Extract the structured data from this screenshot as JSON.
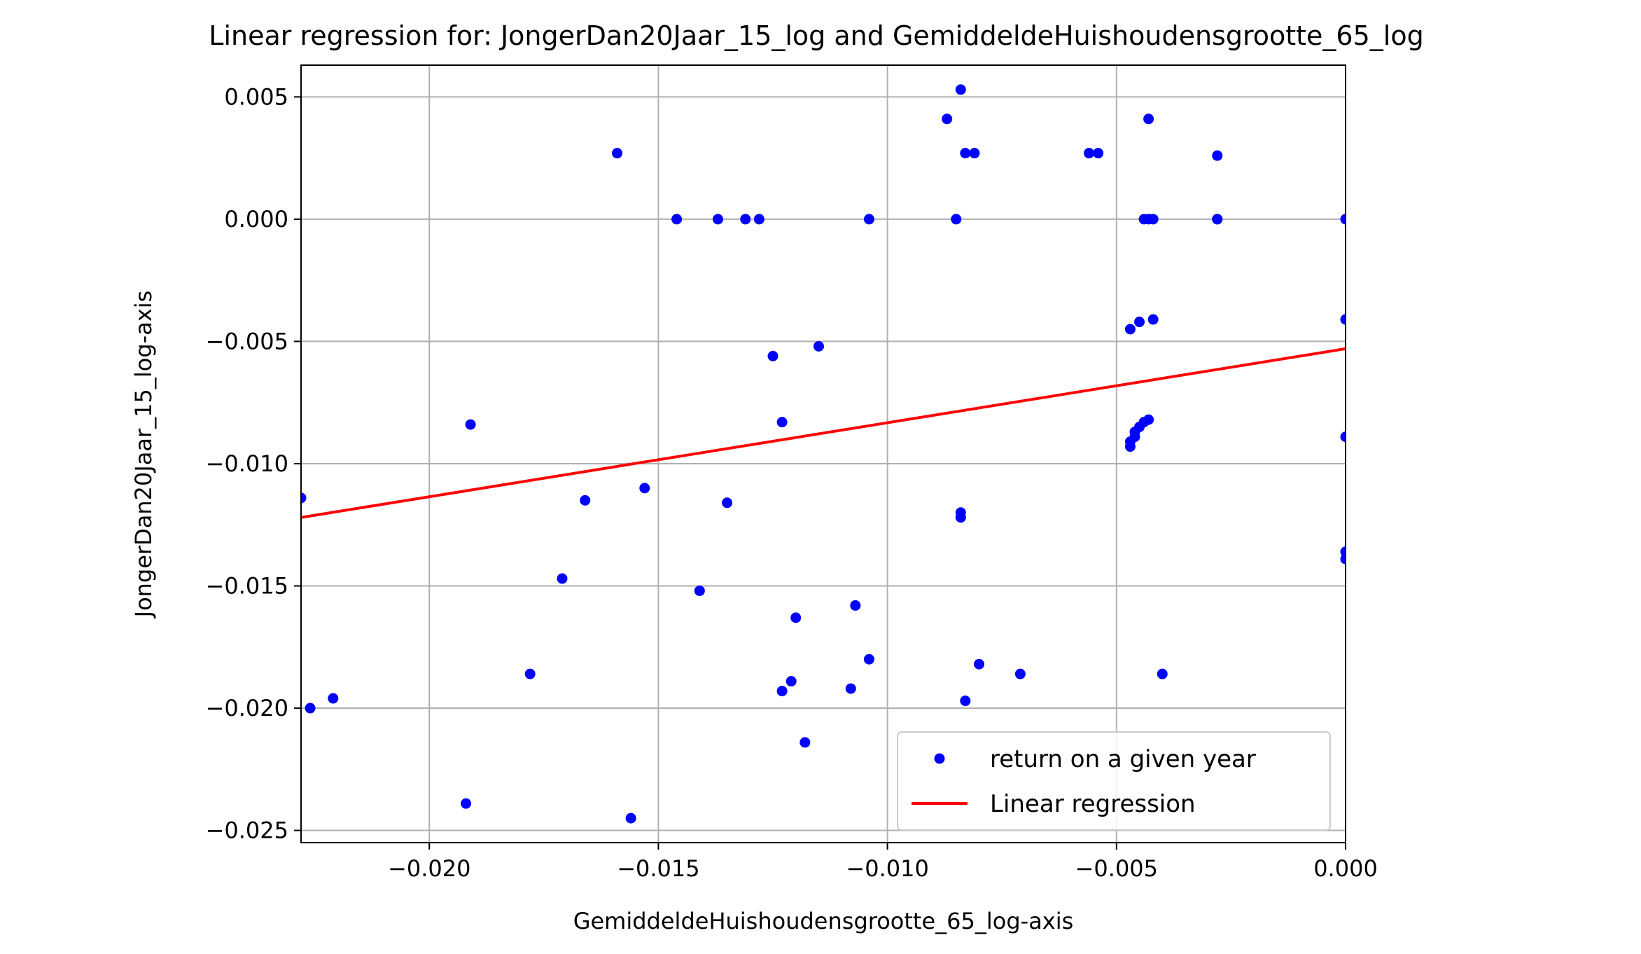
{
  "chart_data": {
    "type": "scatter",
    "title": "Linear regression for: JongerDan20Jaar_15_log and GemiddeldeHuishoudensgrootte_65_log",
    "xlabel": "GemiddeldeHuishoudensgrootte_65_log-axis",
    "ylabel": "JongerDan20Jaar_15_log-axis",
    "xlim": [
      -0.0228,
      0.0
    ],
    "ylim": [
      -0.0255,
      0.0063
    ],
    "xticks": [
      -0.02,
      -0.015,
      -0.01,
      -0.005,
      0.0
    ],
    "xtick_labels": [
      "−0.020",
      "−0.015",
      "−0.010",
      "−0.005",
      "0.000"
    ],
    "yticks": [
      0.005,
      0.0,
      -0.005,
      -0.01,
      -0.015,
      -0.02,
      -0.025
    ],
    "ytick_labels": [
      "0.005",
      "0.000",
      "−0.005",
      "−0.010",
      "−0.015",
      "−0.020",
      "−0.025"
    ],
    "grid": true,
    "legend_position": "lower-right",
    "series": [
      {
        "name": "return on a given year",
        "kind": "scatter",
        "color": "#0000ff",
        "points": [
          [
            -0.0228,
            -0.0114
          ],
          [
            -0.0226,
            -0.02
          ],
          [
            -0.0221,
            -0.0196
          ],
          [
            -0.0192,
            -0.0239
          ],
          [
            -0.0191,
            -0.0084
          ],
          [
            -0.0178,
            -0.0186
          ],
          [
            -0.0171,
            -0.0147
          ],
          [
            -0.0166,
            -0.0115
          ],
          [
            -0.0159,
            0.0027
          ],
          [
            -0.0156,
            -0.0245
          ],
          [
            -0.0153,
            -0.011
          ],
          [
            -0.0146,
            0.0
          ],
          [
            -0.0141,
            -0.0152
          ],
          [
            -0.0137,
            0.0
          ],
          [
            -0.0135,
            -0.0116
          ],
          [
            -0.0131,
            0.0
          ],
          [
            -0.0128,
            0.0
          ],
          [
            -0.0125,
            -0.0056
          ],
          [
            -0.0123,
            -0.0083
          ],
          [
            -0.0123,
            -0.0193
          ],
          [
            -0.0121,
            -0.0189
          ],
          [
            -0.012,
            -0.0163
          ],
          [
            -0.0118,
            -0.0214
          ],
          [
            -0.0115,
            -0.0052
          ],
          [
            -0.0108,
            -0.0192
          ],
          [
            -0.0107,
            -0.0158
          ],
          [
            -0.0104,
            -0.018
          ],
          [
            -0.0104,
            0.0
          ],
          [
            -0.0087,
            0.0041
          ],
          [
            -0.0085,
            0.0
          ],
          [
            -0.0084,
            0.0053
          ],
          [
            -0.0084,
            -0.0122
          ],
          [
            -0.0084,
            -0.012
          ],
          [
            -0.0083,
            0.0027
          ],
          [
            -0.0083,
            -0.0197
          ],
          [
            -0.0081,
            0.0027
          ],
          [
            -0.008,
            -0.0182
          ],
          [
            -0.0071,
            -0.0186
          ],
          [
            -0.0056,
            0.0027
          ],
          [
            -0.0054,
            0.0027
          ],
          [
            -0.0047,
            -0.0045
          ],
          [
            -0.0047,
            -0.0093
          ],
          [
            -0.0047,
            -0.0091
          ],
          [
            -0.0046,
            -0.0089
          ],
          [
            -0.0046,
            -0.0087
          ],
          [
            -0.0045,
            -0.0085
          ],
          [
            -0.0045,
            -0.0042
          ],
          [
            -0.0044,
            -0.0083
          ],
          [
            -0.0044,
            0.0
          ],
          [
            -0.0043,
            -0.0082
          ],
          [
            -0.0043,
            0.0041
          ],
          [
            -0.0043,
            0.0
          ],
          [
            -0.0042,
            -0.0041
          ],
          [
            -0.0042,
            0.0
          ],
          [
            -0.004,
            -0.0186
          ],
          [
            -0.0028,
            0.0026
          ],
          [
            -0.0028,
            0.0
          ],
          [
            -0.0028,
            0.0
          ],
          [
            0.0,
            0.0
          ],
          [
            0.0,
            -0.0041
          ],
          [
            0.0,
            -0.0089
          ],
          [
            0.0,
            -0.0136
          ],
          [
            0.0,
            -0.0139
          ]
        ]
      },
      {
        "name": "Linear regression",
        "kind": "line",
        "color": "#ff0000",
        "x": [
          -0.0228,
          0.0
        ],
        "y": [
          -0.0122,
          -0.0053
        ]
      }
    ]
  }
}
